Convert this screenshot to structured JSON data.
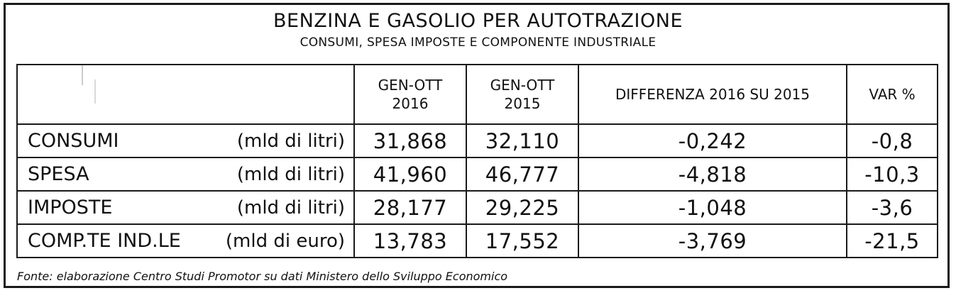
{
  "title": "BENZINA E GASOLIO PER AUTOTRAZIONE",
  "subtitle": "CONSUMI, SPESA IMPOSTE E COMPONENTE INDUSTRIALE",
  "columns": [
    "GEN-OTT\n2016",
    "GEN-OTT\n2015",
    "DIFFERENZA 2016 SU 2015",
    "VAR %"
  ],
  "rows": [
    {
      "label": "CONSUMI",
      "unit": "(mld di litri)",
      "v2016": "31,868",
      "v2015": "32,110",
      "diff": "-0,242",
      "var": "-0,8"
    },
    {
      "label": "SPESA",
      "unit": "(mld di litri)",
      "v2016": "41,960",
      "v2015": "46,777",
      "diff": "-4,818",
      "var": "-10,3"
    },
    {
      "label": "IMPOSTE",
      "unit": "(mld di litri)",
      "v2016": "28,177",
      "v2015": "29,225",
      "diff": "-1,048",
      "var": "-3,6"
    },
    {
      "label": "COMP.TE IND.LE",
      "unit": "(mld di euro)",
      "v2016": "13,783",
      "v2015": "17,552",
      "diff": "-3,769",
      "var": "-21,5"
    }
  ],
  "source": "Fonte: elaborazione Centro Studi Promotor su dati Ministero dello Sviluppo Economico",
  "chart_data": {
    "type": "table",
    "title": "BENZINA E GASOLIO PER AUTOTRAZIONE",
    "subtitle": "CONSUMI, SPESA IMPOSTE E COMPONENTE INDUSTRIALE",
    "columns": [
      "GEN-OTT 2016",
      "GEN-OTT 2015",
      "DIFFERENZA 2016 SU 2015",
      "VAR %"
    ],
    "rows": [
      {
        "label": "CONSUMI",
        "unit": "(mld di litri)",
        "values": [
          31.868,
          32.11,
          -0.242,
          -0.8
        ]
      },
      {
        "label": "SPESA",
        "unit": "(mld di litri)",
        "values": [
          41.96,
          46.777,
          -4.818,
          -10.3
        ]
      },
      {
        "label": "IMPOSTE",
        "unit": "(mld di litri)",
        "values": [
          28.177,
          29.225,
          -1.048,
          -3.6
        ]
      },
      {
        "label": "COMP.TE IND.LE",
        "unit": "(mld di euro)",
        "values": [
          13.783,
          17.552,
          -3.769,
          -21.5
        ]
      }
    ]
  }
}
